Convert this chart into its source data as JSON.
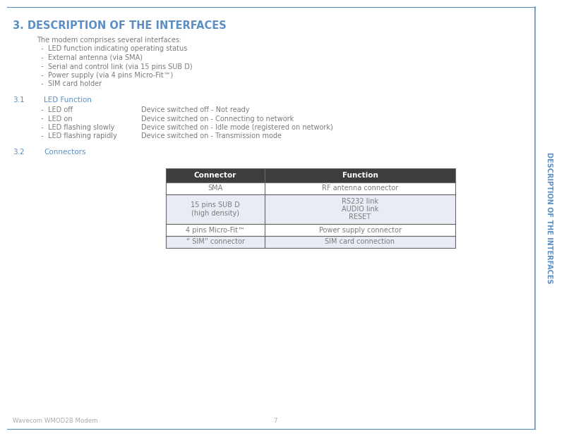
{
  "page_bg": "#ffffff",
  "title": "3. DESCRIPTION OF THE INTERFACES",
  "title_color": "#5b8ec4",
  "title_fontsize": 10.5,
  "sidebar_text": "DESCRIPTION OF THE INTERFACES",
  "sidebar_color": "#5b8ec4",
  "sidebar_line_color": "#5b8ec4",
  "body_text_color": "#7a7a7a",
  "body_fontsize": 7.0,
  "section_label_color": "#5b8ec4",
  "section_title_color": "#5b8ec4",
  "section_fontsize": 7.5,
  "intro_line": "The modem comprises several interfaces:",
  "intro_bullets": [
    "LED function indicating operating status",
    "External antenna (via SMA)",
    "Serial and control link (via 15 pins SUB D)",
    "Power supply (via 4 pins Micro-Fit™)",
    "SIM card holder"
  ],
  "led_items": [
    [
      "LED off",
      "Device switched off - Not ready"
    ],
    [
      "LED on",
      "Device switched on - Connecting to network"
    ],
    [
      "LED flashing slowly",
      "Device switched on - Idle mode (registered on network)"
    ],
    [
      "LED flashing rapidly",
      "Device switched on - Transmission mode"
    ]
  ],
  "table_headers": [
    "Connector",
    "Function"
  ],
  "table_rows": [
    [
      "SMA",
      "RF antenna connector"
    ],
    [
      "15 pins SUB D\n(high density)",
      "RS232 link\nAUDIO link\nRESET"
    ],
    [
      "4 pins Micro-Fit™",
      "Power supply connector"
    ],
    [
      "“ SIM” connector",
      "SIM card connection"
    ]
  ],
  "table_header_bg": "#3d3d3d",
  "table_header_fg": "#ffffff",
  "table_row_bg_alt": "#e8edf5",
  "table_row_bg_norm": "#ffffff",
  "table_border_color": "#666666",
  "footer_left": "Wavecom WMOD2B Modem",
  "footer_center": "7",
  "footer_color": "#aaaaaa"
}
